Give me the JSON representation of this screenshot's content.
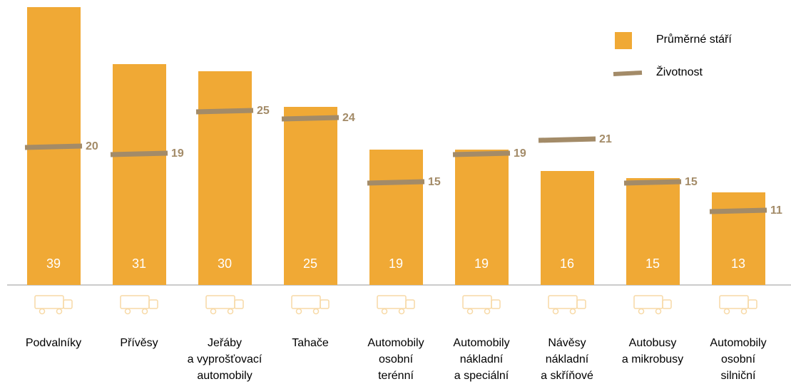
{
  "chart_data": {
    "type": "bar",
    "categories": [
      "Podvalníky",
      "Přívěsy",
      "Jeřáby\na vyprošťovací\nautomobily",
      "Tahače",
      "Automobily\nosobní\nterénní",
      "Automobily\nnákladní\na speciální",
      "Návěsy\nnákladní\na skříňové",
      "Autobusy\na mikrobusy",
      "Automobily\nosobní\nsilniční"
    ],
    "series": [
      {
        "name": "Průměrné stáří",
        "color": "#f0a935",
        "style": "bar",
        "values": [
          39,
          31,
          30,
          25,
          19,
          19,
          16,
          15,
          13
        ]
      },
      {
        "name": "Životnost",
        "color": "#a38b68",
        "style": "dash",
        "values": [
          20,
          19,
          25,
          24,
          15,
          19,
          21,
          15,
          11
        ]
      }
    ],
    "ylim": [
      0,
      40
    ],
    "legend": "top-right"
  }
}
